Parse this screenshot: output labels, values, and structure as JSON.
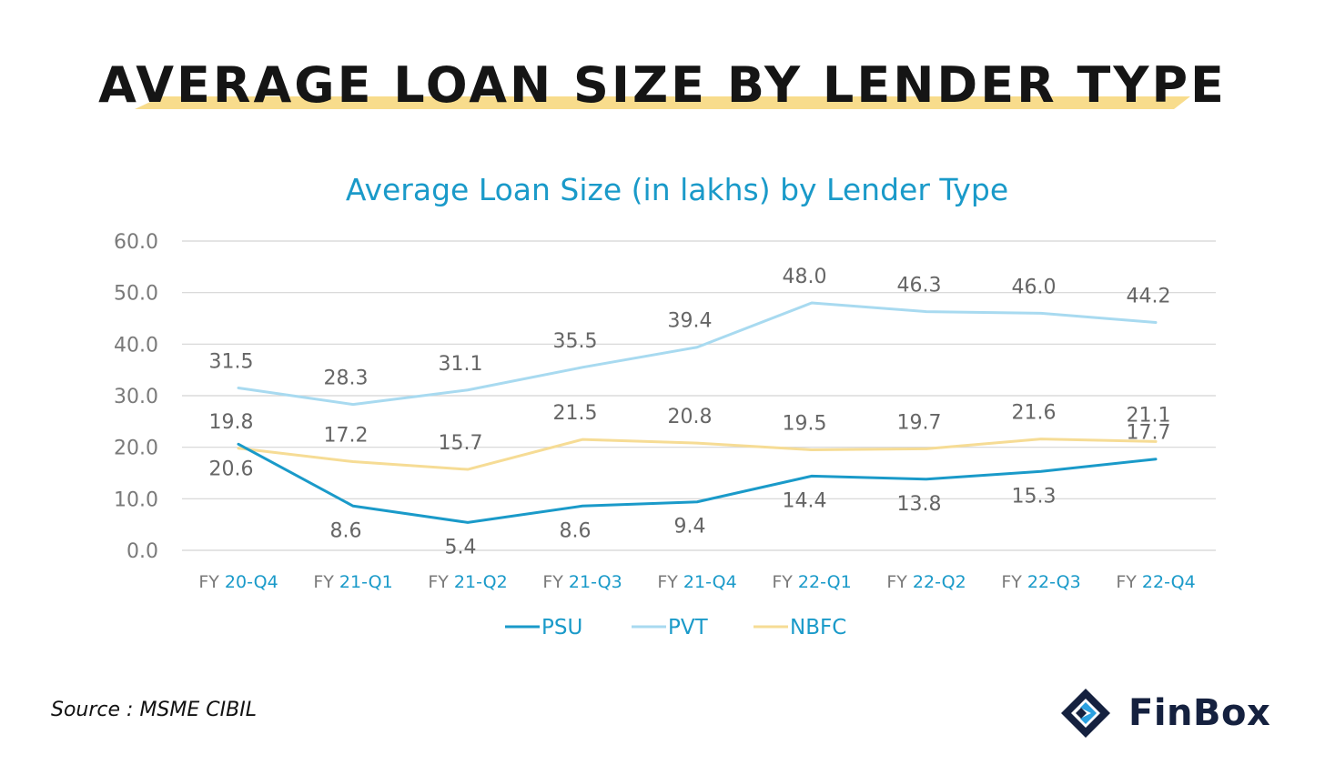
{
  "page": {
    "title": "AVERAGE LOAN SIZE BY LENDER TYPE",
    "source": "Source : MSME CIBIL",
    "brand": "FinBox",
    "highlight_color": "#f8dc8c"
  },
  "chart_data": {
    "type": "line",
    "title": "Average Loan Size (in lakhs) by Lender Type",
    "xlabel": "",
    "ylabel": "",
    "categories": [
      {
        "prefix": "FY",
        "suffix": "20-Q4"
      },
      {
        "prefix": "FY",
        "suffix": "21-Q1"
      },
      {
        "prefix": "FY",
        "suffix": "21-Q2"
      },
      {
        "prefix": "FY",
        "suffix": "21-Q3"
      },
      {
        "prefix": "FY",
        "suffix": "21-Q4"
      },
      {
        "prefix": "FY",
        "suffix": "22-Q1"
      },
      {
        "prefix": "FY",
        "suffix": "22-Q2"
      },
      {
        "prefix": "FY",
        "suffix": "22-Q3"
      },
      {
        "prefix": "FY",
        "suffix": "22-Q4"
      }
    ],
    "y_ticks": [
      "0.0",
      "10.0",
      "20.0",
      "30.0",
      "40.0",
      "50.0",
      "60.0"
    ],
    "ylim": [
      0,
      60
    ],
    "grid": true,
    "legend_position": "bottom",
    "series": [
      {
        "name": "PSU",
        "color": "#1a9ac9",
        "values": [
          20.6,
          8.6,
          5.4,
          8.6,
          9.4,
          14.4,
          13.8,
          15.3,
          17.7
        ],
        "labels": [
          "20.6",
          "8.6",
          "5.4",
          "8.6",
          "9.4",
          "14.4",
          "13.8",
          "15.3",
          "17.7"
        ],
        "label_side": [
          "below",
          "below",
          "below",
          "below",
          "below",
          "below",
          "below",
          "below",
          "above"
        ]
      },
      {
        "name": "PVT",
        "color": "#a8daf0",
        "values": [
          31.5,
          28.3,
          31.1,
          35.5,
          39.4,
          48.0,
          46.3,
          46.0,
          44.2
        ],
        "labels": [
          "31.5",
          "28.3",
          "31.1",
          "35.5",
          "39.4",
          "48.0",
          "46.3",
          "46.0",
          "44.2"
        ],
        "label_side": [
          "above",
          "above",
          "above",
          "above",
          "above",
          "above",
          "above",
          "above",
          "above"
        ]
      },
      {
        "name": "NBFC",
        "color": "#f6dc95",
        "values": [
          19.8,
          17.2,
          15.7,
          21.5,
          20.8,
          19.5,
          19.7,
          21.6,
          21.1
        ],
        "labels": [
          "19.8",
          "17.2",
          "15.7",
          "21.5",
          "20.8",
          "19.5",
          "19.7",
          "21.6",
          "21.1"
        ],
        "label_side": [
          "above",
          "above",
          "above",
          "above",
          "above",
          "above",
          "above",
          "above",
          "above"
        ]
      }
    ],
    "colors": {
      "title": "#1a9ac9",
      "axis_text": "#7a7a7a",
      "category_accent": "#1a9ac9",
      "data_label": "#666666",
      "grid": "#d4d4d4"
    }
  }
}
